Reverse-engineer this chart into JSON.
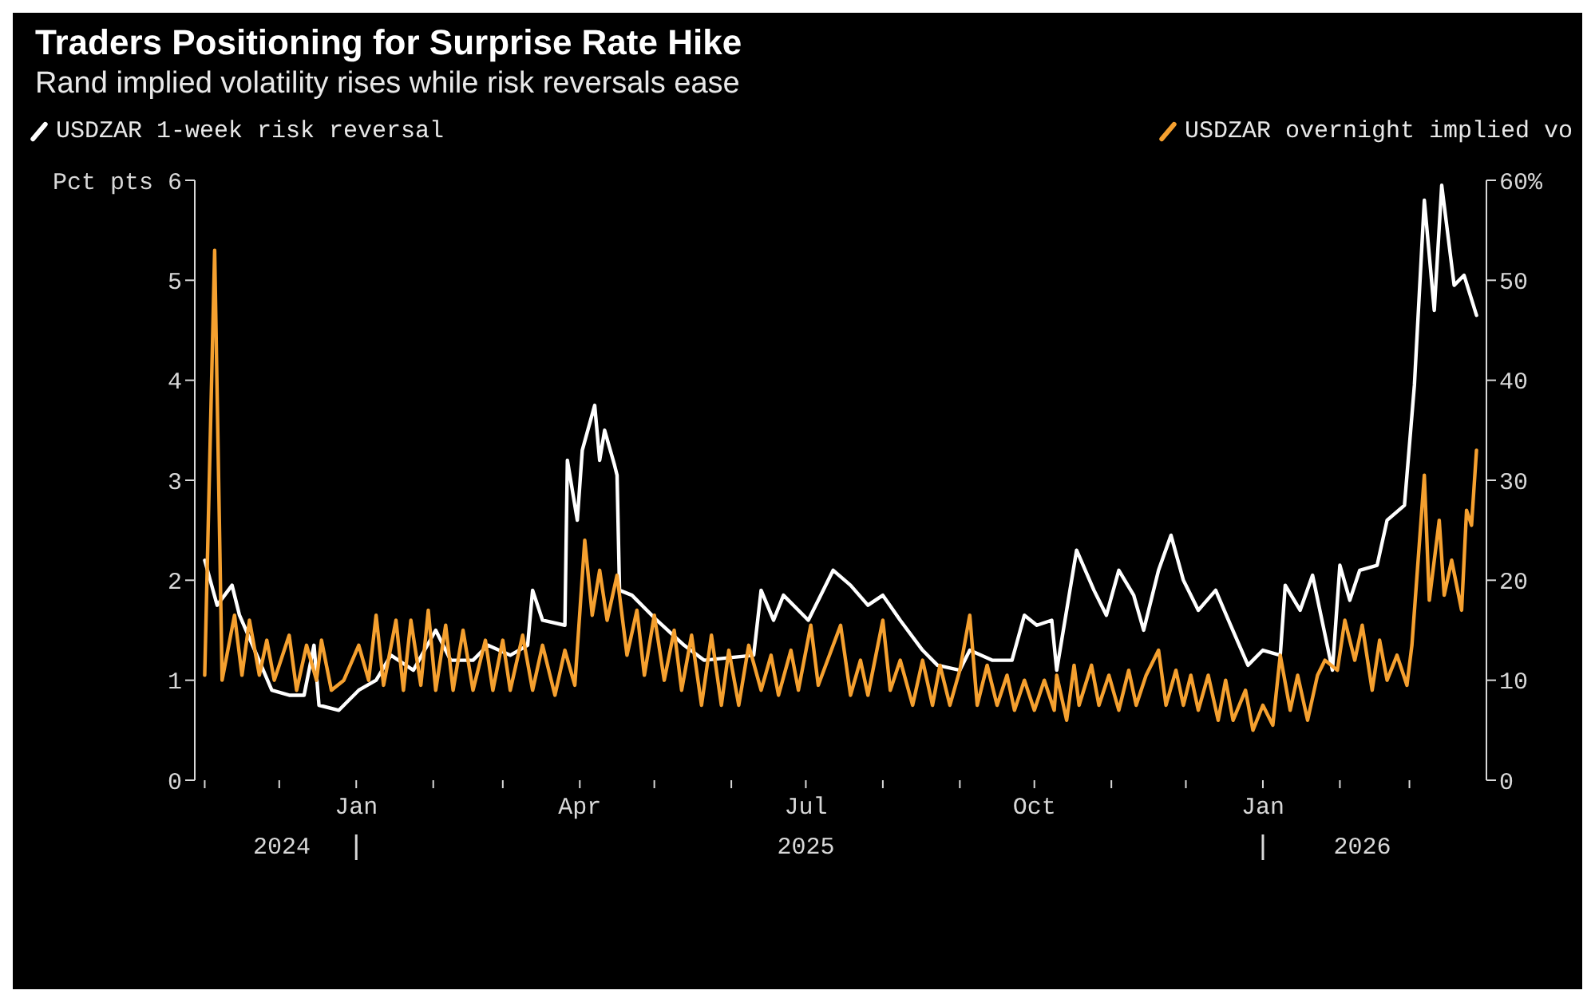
{
  "chart_data": {
    "type": "line",
    "title": "Traders Positioning for Surprise Rate Hike",
    "subtitle": "Rand implied volatility rises while risk reversals ease",
    "legend": "top",
    "xlim": [
      "2024-10-28",
      "2026-04-01"
    ],
    "xticks": [
      {
        "value": "2024-11-01",
        "label": null
      },
      {
        "value": "2024-12-01",
        "label": null
      },
      {
        "value": "2025-01-01",
        "label": "Jan"
      },
      {
        "value": "2025-02-01",
        "label": null
      },
      {
        "value": "2025-03-01",
        "label": null
      },
      {
        "value": "2025-04-01",
        "label": "Apr"
      },
      {
        "value": "2025-05-01",
        "label": null
      },
      {
        "value": "2025-06-01",
        "label": null
      },
      {
        "value": "2025-07-01",
        "label": "Jul"
      },
      {
        "value": "2025-08-01",
        "label": null
      },
      {
        "value": "2025-09-01",
        "label": null
      },
      {
        "value": "2025-10-01",
        "label": "Oct"
      },
      {
        "value": "2025-11-01",
        "label": null
      },
      {
        "value": "2025-12-01",
        "label": null
      },
      {
        "value": "2026-01-01",
        "label": "Jan"
      },
      {
        "value": "2026-02-01",
        "label": null
      },
      {
        "value": "2026-03-01",
        "label": null
      }
    ],
    "x2lim": [
      "2024-10-28",
      "2026-04-01"
    ],
    "x2ticks": [
      {
        "value": "2024-12-02",
        "label": "2024"
      },
      {
        "value": "2025-01-01",
        "label": null
      },
      {
        "value": "2025-07-01",
        "label": "2025"
      },
      {
        "value": "2026-01-01",
        "label": null
      },
      {
        "value": "2026-02-10",
        "label": "2026"
      }
    ],
    "ylim": [
      0,
      6
    ],
    "yticks": [
      0,
      1,
      2,
      3,
      4,
      5,
      {
        "value": 6,
        "label": "Pct pts 6"
      }
    ],
    "y2lim": [
      0,
      60
    ],
    "y2ticks": [
      0,
      10,
      20,
      30,
      40,
      50,
      {
        "value": 60,
        "label": "60%"
      }
    ],
    "series": [
      {
        "name": "USDZAR 1-week risk reversal",
        "color": "#ffffff",
        "x": [
          "2024-11-01",
          "2024-11-06",
          "2024-11-12",
          "2024-11-15",
          "2024-11-22",
          "2024-11-28",
          "2024-12-05",
          "2024-12-11",
          "2024-12-15",
          "2024-12-17",
          "2024-12-25",
          "2025-01-02",
          "2025-01-09",
          "2025-01-15",
          "2025-01-24",
          "2025-02-02",
          "2025-02-08",
          "2025-02-17",
          "2025-02-23",
          "2025-03-04",
          "2025-03-11",
          "2025-03-13",
          "2025-03-17",
          "2025-03-26",
          "2025-03-27",
          "2025-03-31",
          "2025-04-02",
          "2025-04-07",
          "2025-04-09",
          "2025-04-11",
          "2025-04-15",
          "2025-04-16",
          "2025-04-17",
          "2025-04-22",
          "2025-05-02",
          "2025-05-13",
          "2025-05-21",
          "2025-06-10",
          "2025-06-13",
          "2025-06-18",
          "2025-06-22",
          "2025-07-02",
          "2025-07-06",
          "2025-07-12",
          "2025-07-19",
          "2025-07-26",
          "2025-08-01",
          "2025-08-08",
          "2025-08-17",
          "2025-08-23",
          "2025-09-01",
          "2025-09-05",
          "2025-09-14",
          "2025-09-22",
          "2025-09-27",
          "2025-10-02",
          "2025-10-08",
          "2025-10-10",
          "2025-10-18",
          "2025-10-25",
          "2025-10-30",
          "2025-11-04",
          "2025-11-10",
          "2025-11-14",
          "2025-11-20",
          "2025-11-25",
          "2025-11-30",
          "2025-12-06",
          "2025-12-13",
          "2025-12-19",
          "2025-12-26",
          "2026-01-01",
          "2026-01-08",
          "2026-01-10",
          "2026-01-16",
          "2026-01-21",
          "2026-01-29",
          "2026-02-01",
          "2026-02-05",
          "2026-02-09",
          "2026-02-16",
          "2026-02-20",
          "2026-02-27",
          "2026-03-03",
          "2026-03-07",
          "2026-03-11",
          "2026-03-14",
          "2026-03-19",
          "2026-03-23",
          "2026-03-28"
        ],
        "values": [
          2.2,
          1.75,
          1.95,
          1.65,
          1.25,
          0.9,
          0.85,
          0.85,
          1.35,
          0.75,
          0.7,
          0.9,
          1.0,
          1.25,
          1.1,
          1.5,
          1.2,
          1.2,
          1.35,
          1.25,
          1.35,
          1.9,
          1.6,
          1.55,
          3.2,
          2.6,
          3.3,
          3.75,
          3.2,
          3.5,
          3.15,
          3.05,
          1.9,
          1.85,
          1.6,
          1.35,
          1.2,
          1.25,
          1.9,
          1.6,
          1.85,
          1.6,
          1.8,
          2.1,
          1.95,
          1.75,
          1.85,
          1.6,
          1.3,
          1.15,
          1.1,
          1.3,
          1.2,
          1.2,
          1.65,
          1.55,
          1.6,
          1.1,
          2.3,
          1.9,
          1.65,
          2.1,
          1.85,
          1.5,
          2.1,
          2.45,
          2.0,
          1.7,
          1.9,
          1.55,
          1.15,
          1.3,
          1.25,
          1.95,
          1.7,
          2.05,
          1.1,
          2.15,
          1.8,
          2.1,
          2.15,
          2.6,
          2.75,
          3.95,
          5.8,
          4.7,
          5.95,
          4.95,
          5.05,
          4.65
        ]
      },
      {
        "name": "USDZAR overnight implied vo",
        "color": "#f5a02f",
        "axis": "y2",
        "x": [
          "2024-11-01",
          "2024-11-05",
          "2024-11-08",
          "2024-11-13",
          "2024-11-16",
          "2024-11-19",
          "2024-11-23",
          "2024-11-26",
          "2024-11-29",
          "2024-12-05",
          "2024-12-08",
          "2024-12-12",
          "2024-12-16",
          "2024-12-18",
          "2024-12-22",
          "2024-12-27",
          "2025-01-02",
          "2025-01-06",
          "2025-01-09",
          "2025-01-12",
          "2025-01-17",
          "2025-01-20",
          "2025-01-23",
          "2025-01-27",
          "2025-01-30",
          "2025-02-02",
          "2025-02-06",
          "2025-02-09",
          "2025-02-13",
          "2025-02-17",
          "2025-02-22",
          "2025-02-25",
          "2025-03-01",
          "2025-03-04",
          "2025-03-09",
          "2025-03-13",
          "2025-03-17",
          "2025-03-22",
          "2025-03-26",
          "2025-03-30",
          "2025-04-03",
          "2025-04-06",
          "2025-04-09",
          "2025-04-12",
          "2025-04-16",
          "2025-04-20",
          "2025-04-24",
          "2025-04-27",
          "2025-05-01",
          "2025-05-05",
          "2025-05-09",
          "2025-05-12",
          "2025-05-16",
          "2025-05-20",
          "2025-05-24",
          "2025-05-28",
          "2025-05-31",
          "2025-06-04",
          "2025-06-08",
          "2025-06-13",
          "2025-06-17",
          "2025-06-20",
          "2025-06-25",
          "2025-06-28",
          "2025-07-03",
          "2025-07-06",
          "2025-07-15",
          "2025-07-19",
          "2025-07-23",
          "2025-07-26",
          "2025-08-01",
          "2025-08-04",
          "2025-08-08",
          "2025-08-13",
          "2025-08-17",
          "2025-08-21",
          "2025-08-24",
          "2025-08-28",
          "2025-09-01",
          "2025-09-05",
          "2025-09-08",
          "2025-09-12",
          "2025-09-16",
          "2025-09-20",
          "2025-09-23",
          "2025-09-27",
          "2025-10-01",
          "2025-10-05",
          "2025-10-09",
          "2025-10-10",
          "2025-10-14",
          "2025-10-17",
          "2025-10-19",
          "2025-10-24",
          "2025-10-27",
          "2025-10-31",
          "2025-11-04",
          "2025-11-08",
          "2025-11-11",
          "2025-11-15",
          "2025-11-20",
          "2025-11-23",
          "2025-11-27",
          "2025-11-30",
          "2025-12-03",
          "2025-12-06",
          "2025-12-10",
          "2025-12-14",
          "2025-12-17",
          "2025-12-20",
          "2025-12-25",
          "2025-12-28",
          "2026-01-01",
          "2026-01-05",
          "2026-01-08",
          "2026-01-12",
          "2026-01-15",
          "2026-01-19",
          "2026-01-23",
          "2026-01-26",
          "2026-01-31",
          "2026-02-03",
          "2026-02-07",
          "2026-02-10",
          "2026-02-14",
          "2026-02-17",
          "2026-02-20",
          "2026-02-24",
          "2026-02-28",
          "2026-03-02",
          "2026-03-07",
          "2026-03-09",
          "2026-03-13",
          "2026-03-15",
          "2026-03-18",
          "2026-03-22",
          "2026-03-24",
          "2026-03-26",
          "2026-03-28"
        ],
        "values": [
          10.5,
          53,
          10,
          16.5,
          10.5,
          16,
          10.5,
          14,
          10,
          14.5,
          9,
          13.5,
          10,
          14,
          9,
          10,
          13.5,
          10,
          16.5,
          9.5,
          16,
          9,
          16,
          9.5,
          17,
          9,
          15.5,
          9,
          15,
          9,
          14,
          9,
          14,
          9,
          14.5,
          9,
          13.5,
          8.5,
          13,
          9.5,
          24,
          16.5,
          21,
          16,
          20.5,
          12.5,
          17,
          10.5,
          16.5,
          10,
          15,
          9,
          14.5,
          7.5,
          14.5,
          7.5,
          13,
          7.5,
          13.5,
          9,
          12.5,
          8.5,
          13,
          9,
          15.5,
          9.5,
          15.5,
          8.5,
          12,
          8.5,
          16,
          9,
          12,
          7.5,
          12,
          7.5,
          11.5,
          7.5,
          11,
          16.5,
          7.5,
          11.5,
          7.5,
          10.5,
          7,
          10,
          7,
          10,
          7,
          10.5,
          6,
          11.5,
          7.5,
          11.5,
          7.5,
          10.5,
          7,
          11,
          7.5,
          10.5,
          13,
          7.5,
          11,
          7.5,
          10.5,
          7,
          10.5,
          6,
          10,
          6,
          9,
          5,
          7.5,
          5.5,
          12.5,
          7,
          10.5,
          6,
          10.5,
          12,
          11,
          16,
          12,
          15.5,
          9,
          14,
          10,
          12.5,
          9.5,
          13.5,
          30.5,
          18,
          26,
          18.5,
          22,
          17,
          27,
          25.5,
          33
        ]
      }
    ]
  }
}
